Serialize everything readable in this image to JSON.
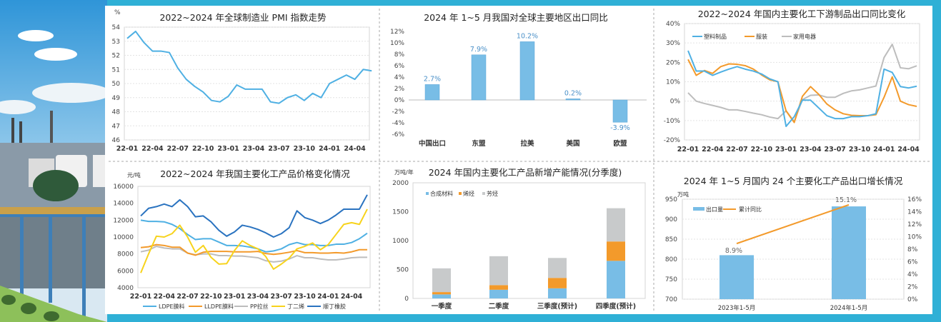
{
  "colors": {
    "frame": "#2fb0d6",
    "blue": "#4fb0e3",
    "orange": "#f39a2b",
    "gray": "#bdbdbd",
    "yellow": "#f7d31c",
    "darkblue": "#2a73c0",
    "bar": "#78bde6"
  },
  "chart_data": [
    {
      "id": "pmi",
      "type": "line",
      "title": "2022~2024 年全球制造业 PMI 指数走势",
      "ylabel": "%",
      "ylim": [
        46,
        54
      ],
      "yticks": [
        "46",
        "47",
        "48",
        "49",
        "50",
        "51",
        "52",
        "53",
        "54"
      ],
      "xticks": [
        "22-01",
        "22-04",
        "22-07",
        "22-10",
        "23-01",
        "23-04",
        "23-07",
        "23-10",
        "24-01",
        "24-04"
      ],
      "grid": true,
      "series": [
        {
          "values": [
            53.2,
            53.7,
            52.9,
            52.3,
            52.3,
            52.2,
            51.1,
            50.3,
            49.8,
            49.4,
            48.8,
            48.7,
            49.1,
            49.9,
            49.6,
            49.6,
            49.6,
            48.7,
            48.6,
            49.0,
            49.2,
            48.8,
            49.3,
            49.0,
            50.0,
            50.3,
            50.6,
            50.3,
            51.0,
            50.9
          ]
        }
      ]
    },
    {
      "id": "exportRegion",
      "type": "bar",
      "title": "2024 年 1~5 月我国对全球主要地区出口同比",
      "ylim": [
        -6,
        12
      ],
      "yticks": [
        "-6%",
        "-4%",
        "-2%",
        "0%",
        "2%",
        "4%",
        "6%",
        "8%",
        "10%",
        "12%"
      ],
      "categories": [
        "中国出口",
        "东盟",
        "拉美",
        "美国",
        "欧盟"
      ],
      "values": [
        2.7,
        7.9,
        10.2,
        0.2,
        -3.9
      ],
      "labels": [
        "2.7%",
        "7.9%",
        "10.2%",
        "0.2%",
        "-3.9%"
      ]
    },
    {
      "id": "downstream",
      "type": "line",
      "title": "2022~2024 年国内主要化工下游制品出口同比变化",
      "ylim": [
        -20,
        40
      ],
      "yticks": [
        "-20%",
        "-10%",
        "0%",
        "10%",
        "20%",
        "30%",
        "40%"
      ],
      "xticks": [
        "22-01",
        "22-04",
        "22-07",
        "22-10",
        "23-01",
        "23-04",
        "23-07",
        "23-10",
        "24-01",
        "24-04"
      ],
      "legend": "top-left",
      "grid": true,
      "series": [
        {
          "name": "塑料制品",
          "values": [
            26,
            15.5,
            15.5,
            13.3,
            15,
            16.5,
            17.8,
            16.5,
            15.5,
            14,
            11.5,
            10,
            -13,
            -8,
            0.5,
            0.5,
            -3.5,
            -7.5,
            -9,
            -9,
            -8,
            -8,
            -7.5,
            -6.5,
            16.5,
            14.8,
            7.5,
            6.8,
            7.7
          ]
        },
        {
          "name": "服装",
          "values": [
            21.5,
            13.3,
            15.8,
            14.3,
            17.8,
            19.2,
            19,
            18.3,
            16.5,
            13.5,
            11,
            10,
            -5,
            -11,
            2.5,
            7.5,
            3.5,
            -1.5,
            -4.5,
            -6.5,
            -7.3,
            -7.5,
            -7.5,
            -7,
            2,
            12.5,
            0,
            -1.8,
            -2.7
          ]
        },
        {
          "name": "家用电器",
          "values": [
            4.3,
            0,
            -1.2,
            -2.2,
            -3.2,
            -4.5,
            -4.5,
            -5.3,
            -6.2,
            -7,
            -8.2,
            -9,
            -5,
            -10.5,
            0.8,
            3,
            3.2,
            2,
            2,
            4,
            5.3,
            5.8,
            6.8,
            7.8,
            22.5,
            29.3,
            17.2,
            16.7,
            18.2
          ]
        }
      ]
    },
    {
      "id": "price",
      "type": "line",
      "title": "2022~2024 年我国主要化工产品价格变化情况",
      "ylabel": "元/吨",
      "ylim": [
        4000,
        16000
      ],
      "yticks": [
        "4000",
        "6000",
        "8000",
        "10000",
        "12000",
        "14000",
        "16000"
      ],
      "xticks": [
        "22-01",
        "22-04",
        "22-07",
        "22-10",
        "23-01",
        "23-04",
        "23-07",
        "23-10",
        "24-01",
        "24-04"
      ],
      "legend": "bottom",
      "series": [
        {
          "name": "LDPE膜料",
          "values": [
            12000,
            11850,
            11850,
            11800,
            11500,
            11000,
            10300,
            9700,
            9800,
            9800,
            9400,
            9000,
            9000,
            8950,
            8800,
            8600,
            8250,
            8350,
            8600,
            9100,
            9350,
            9100,
            9100,
            9000,
            9000,
            9150,
            9150,
            9350,
            9800,
            10450
          ]
        },
        {
          "name": "LLDPE膜料",
          "values": [
            8750,
            8850,
            9100,
            9000,
            8800,
            8800,
            8100,
            7850,
            8200,
            8300,
            8300,
            8300,
            8250,
            8250,
            8250,
            8300,
            8050,
            7950,
            8050,
            8200,
            8400,
            8150,
            8150,
            8100,
            8100,
            8150,
            8100,
            8250,
            8500,
            8500
          ]
        },
        {
          "name": "PP拉丝",
          "values": [
            8250,
            8450,
            8900,
            8700,
            8600,
            8600,
            8100,
            7900,
            8000,
            8000,
            7800,
            7800,
            7750,
            7750,
            7650,
            7550,
            7200,
            7050,
            7150,
            7400,
            7800,
            7550,
            7550,
            7400,
            7300,
            7300,
            7400,
            7550,
            7600,
            7600
          ]
        },
        {
          "name": "丁二烯",
          "values": [
            5750,
            8000,
            10100,
            10000,
            10400,
            11400,
            10000,
            8200,
            9000,
            7600,
            6800,
            6850,
            8400,
            9550,
            9000,
            8600,
            7700,
            6200,
            6800,
            7500,
            8600,
            8900,
            9300,
            8500,
            9100,
            10300,
            11500,
            11700,
            11500,
            13300
          ]
        },
        {
          "name": "顺丁橡胶",
          "values": [
            12500,
            13400,
            13600,
            13900,
            13600,
            14400,
            13600,
            12400,
            12500,
            11800,
            10800,
            10100,
            10600,
            11400,
            11200,
            10900,
            10500,
            10000,
            10400,
            11100,
            13100,
            12300,
            12000,
            11600,
            12000,
            12600,
            13300,
            13300,
            13300,
            15000
          ]
        }
      ]
    },
    {
      "id": "capacity",
      "type": "bar",
      "stacked": true,
      "title": "2024 年国内主要化工产品新增产能情况(分季度)",
      "ylabel": "万吨/年",
      "ylim": [
        0,
        2000
      ],
      "yticks": [
        "0",
        "500",
        "1000",
        "1500",
        "2000"
      ],
      "categories": [
        "一季度",
        "二季度",
        "三季度(预计)",
        "四季度(预计)"
      ],
      "legend": "top-left",
      "series": [
        {
          "name": "合成材料",
          "values": [
            70,
            150,
            175,
            650
          ]
        },
        {
          "name": "烯烃",
          "values": [
            40,
            80,
            180,
            335
          ]
        },
        {
          "name": "芳烃",
          "values": [
            410,
            500,
            345,
            575
          ]
        }
      ]
    },
    {
      "id": "export24",
      "type": "bar",
      "title": "2024 年 1~5 月国内 24 个主要化工产品出口增长情况",
      "ylabel": "万吨",
      "ylim": [
        700,
        950
      ],
      "y2lim": [
        0,
        16
      ],
      "yticks": [
        "700",
        "750",
        "800",
        "850",
        "900",
        "950"
      ],
      "y2ticks": [
        "0%",
        "2%",
        "4%",
        "6%",
        "8%",
        "10%",
        "12%",
        "14%",
        "16%"
      ],
      "categories": [
        "2023年1-5月",
        "2024年1-5月"
      ],
      "legend": "top-left",
      "series": [
        {
          "name": "出口量",
          "values": [
            810,
            932
          ]
        },
        {
          "name": "累计同比",
          "type": "line",
          "values": [
            8.9,
            15.1
          ],
          "labels": [
            "8.9%",
            "15.1%"
          ]
        }
      ]
    }
  ]
}
